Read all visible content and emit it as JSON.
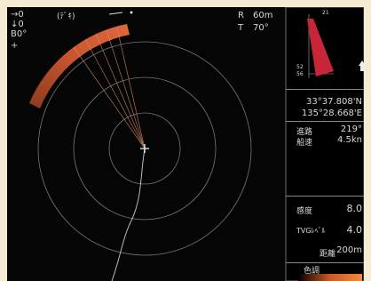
{
  "overlay": {
    "x_offset": "→0",
    "y_offset": "↓0",
    "bearing": "B0°",
    "mode": "(ﾃﾞｷ)"
  },
  "range": {
    "r_label": "R",
    "r_value": "60m",
    "t_label": "T",
    "t_value": "70°"
  },
  "compass": {
    "top": "21",
    "left_a": "52",
    "left_b": "56"
  },
  "position": {
    "lat": "33°37.808'N",
    "lon": "135°28.668'E"
  },
  "nav": {
    "course_label": "進路",
    "course": "219°",
    "speed_label": "船速",
    "speed": "4.5kn"
  },
  "settings": {
    "gain_label": "感度",
    "gain": "8.0",
    "tvg_label": "TVGﾚﾍﾞﾙ",
    "tvg": "4.0",
    "range_label": "距離",
    "range": "200m",
    "tone_label": "色調"
  }
}
